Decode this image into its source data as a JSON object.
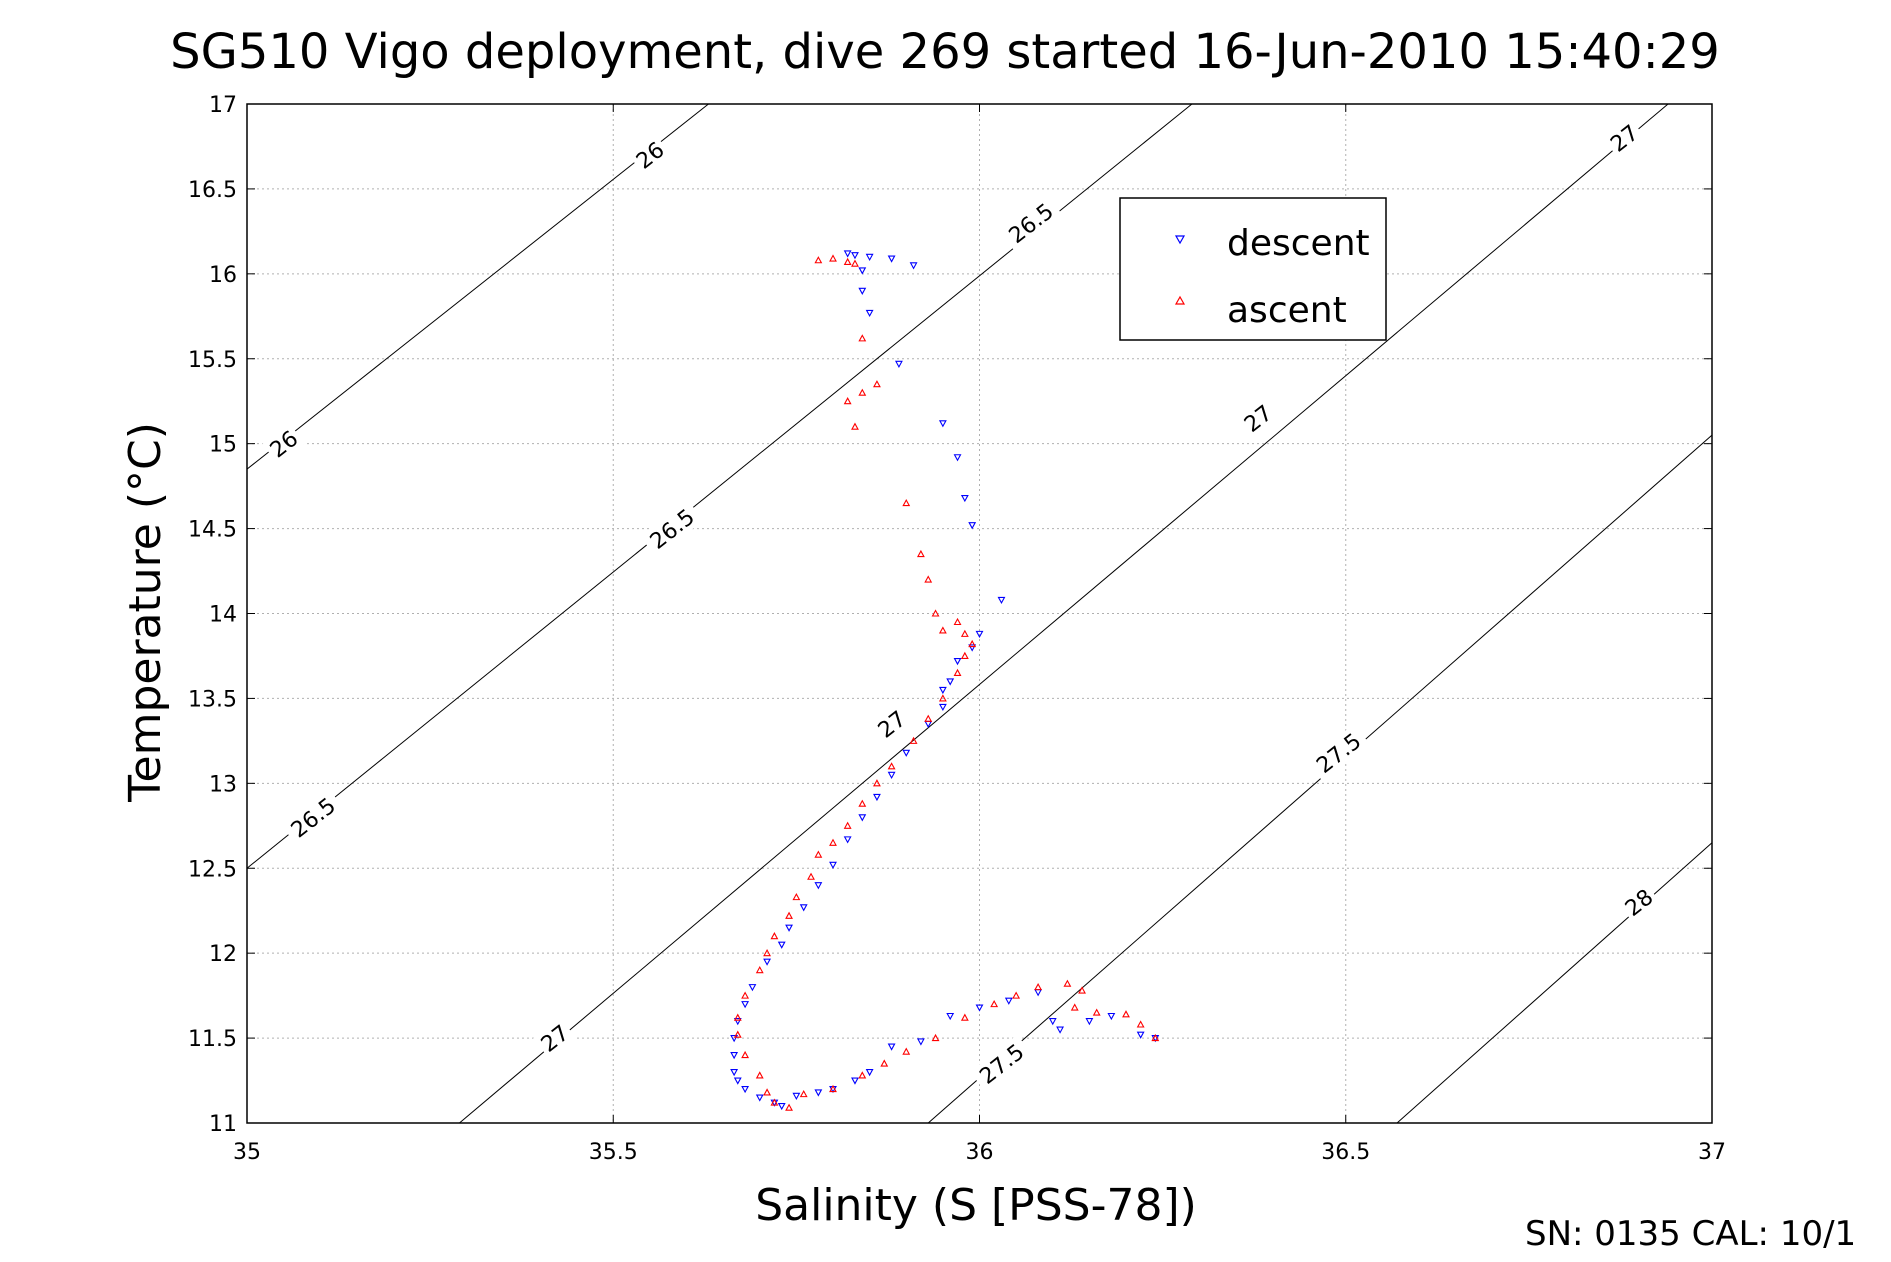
{
  "chart_data": {
    "type": "scatter",
    "title": "SG510 Vigo deployment, dive 269 started 16-Jun-2010 15:40:29",
    "xlabel": "Salinity (S [PSS-78])",
    "ylabel": "Temperature (°C)",
    "xlim": [
      35,
      37
    ],
    "ylim": [
      11,
      17
    ],
    "grid": true,
    "legend_position": "top-right",
    "x_ticks": [
      "35",
      "35.5",
      "36",
      "36.5",
      "37"
    ],
    "y_ticks": [
      "11",
      "11.5",
      "12",
      "12.5",
      "13",
      "13.5",
      "14",
      "14.5",
      "15",
      "15.5",
      "16",
      "16.5",
      "17"
    ],
    "footer_text": "SN: 0135  CAL: 10/1",
    "colors": {
      "descent": "#0000ff",
      "ascent": "#ff0000",
      "contour": "#000000",
      "grid": "#b0b0b0"
    },
    "contour_lines": [
      {
        "sigma": "26",
        "points": [
          [
            35.0,
            14.85
          ],
          [
            35.63,
            17.0
          ]
        ]
      },
      {
        "sigma": "26.5",
        "points": [
          [
            35.0,
            12.5
          ],
          [
            36.29,
            17.0
          ]
        ]
      },
      {
        "sigma": "27",
        "points": [
          [
            35.29,
            11.0
          ],
          [
            36.94,
            17.0
          ]
        ]
      },
      {
        "sigma": "27.5",
        "points": [
          [
            35.93,
            11.0
          ],
          [
            37.0,
            15.05
          ]
        ]
      },
      {
        "sigma": "28",
        "points": [
          [
            36.57,
            11.0
          ],
          [
            37.0,
            12.65
          ]
        ]
      }
    ],
    "contour_labels": [
      {
        "text": "26",
        "x": 35.55,
        "y": 16.7
      },
      {
        "text": "26",
        "x": 35.05,
        "y": 15.0
      },
      {
        "text": "26.5",
        "x": 36.07,
        "y": 16.3
      },
      {
        "text": "26.5",
        "x": 35.58,
        "y": 14.5
      },
      {
        "text": "26.5",
        "x": 35.09,
        "y": 12.8
      },
      {
        "text": "27",
        "x": 36.88,
        "y": 16.8
      },
      {
        "text": "27",
        "x": 36.38,
        "y": 15.15
      },
      {
        "text": "27",
        "x": 35.88,
        "y": 13.35
      },
      {
        "text": "27",
        "x": 35.42,
        "y": 11.5
      },
      {
        "text": "27.5",
        "x": 36.49,
        "y": 13.18
      },
      {
        "text": "27.5",
        "x": 36.03,
        "y": 11.35
      },
      {
        "text": "28",
        "x": 36.9,
        "y": 12.3
      }
    ],
    "series": [
      {
        "name": "descent",
        "marker": "triangle-down",
        "points": [
          [
            35.82,
            16.12
          ],
          [
            35.83,
            16.11
          ],
          [
            35.85,
            16.1
          ],
          [
            35.88,
            16.09
          ],
          [
            35.91,
            16.05
          ],
          [
            35.84,
            16.02
          ],
          [
            35.84,
            15.9
          ],
          [
            35.85,
            15.77
          ],
          [
            35.89,
            15.47
          ],
          [
            35.95,
            15.12
          ],
          [
            35.97,
            14.92
          ],
          [
            35.98,
            14.68
          ],
          [
            35.99,
            14.52
          ],
          [
            36.03,
            14.08
          ],
          [
            36.0,
            13.88
          ],
          [
            35.99,
            13.8
          ],
          [
            35.97,
            13.72
          ],
          [
            35.96,
            13.6
          ],
          [
            35.95,
            13.55
          ],
          [
            35.95,
            13.45
          ],
          [
            35.93,
            13.35
          ],
          [
            35.9,
            13.18
          ],
          [
            35.88,
            13.05
          ],
          [
            35.86,
            12.92
          ],
          [
            35.84,
            12.8
          ],
          [
            35.82,
            12.67
          ],
          [
            35.8,
            12.52
          ],
          [
            35.78,
            12.4
          ],
          [
            35.76,
            12.27
          ],
          [
            35.74,
            12.15
          ],
          [
            35.73,
            12.05
          ],
          [
            35.71,
            11.95
          ],
          [
            35.69,
            11.8
          ],
          [
            35.68,
            11.7
          ],
          [
            35.67,
            11.6
          ],
          [
            35.665,
            11.5
          ],
          [
            35.665,
            11.4
          ],
          [
            35.665,
            11.3
          ],
          [
            35.67,
            11.25
          ],
          [
            35.68,
            11.2
          ],
          [
            35.7,
            11.15
          ],
          [
            35.72,
            11.12
          ],
          [
            35.73,
            11.1
          ],
          [
            35.75,
            11.16
          ],
          [
            35.78,
            11.18
          ],
          [
            35.8,
            11.2
          ],
          [
            35.83,
            11.25
          ],
          [
            35.85,
            11.3
          ],
          [
            35.88,
            11.45
          ],
          [
            35.92,
            11.48
          ],
          [
            35.96,
            11.63
          ],
          [
            36.0,
            11.68
          ],
          [
            36.04,
            11.72
          ],
          [
            36.08,
            11.77
          ],
          [
            36.1,
            11.6
          ],
          [
            36.11,
            11.55
          ],
          [
            36.15,
            11.6
          ],
          [
            36.18,
            11.63
          ],
          [
            36.22,
            11.52
          ],
          [
            36.24,
            11.5
          ]
        ]
      },
      {
        "name": "ascent",
        "marker": "triangle-up",
        "points": [
          [
            35.78,
            16.08
          ],
          [
            35.8,
            16.09
          ],
          [
            35.82,
            16.07
          ],
          [
            35.83,
            16.06
          ],
          [
            35.84,
            15.62
          ],
          [
            35.84,
            15.3
          ],
          [
            35.82,
            15.25
          ],
          [
            35.86,
            15.35
          ],
          [
            35.83,
            15.1
          ],
          [
            35.9,
            14.65
          ],
          [
            35.92,
            14.35
          ],
          [
            35.93,
            14.2
          ],
          [
            35.94,
            14.0
          ],
          [
            35.95,
            13.9
          ],
          [
            35.97,
            13.95
          ],
          [
            35.98,
            13.88
          ],
          [
            35.99,
            13.82
          ],
          [
            35.98,
            13.75
          ],
          [
            35.97,
            13.65
          ],
          [
            35.95,
            13.5
          ],
          [
            35.93,
            13.38
          ],
          [
            35.91,
            13.25
          ],
          [
            35.88,
            13.1
          ],
          [
            35.86,
            13.0
          ],
          [
            35.84,
            12.88
          ],
          [
            35.82,
            12.75
          ],
          [
            35.8,
            12.65
          ],
          [
            35.78,
            12.58
          ],
          [
            35.77,
            12.45
          ],
          [
            35.75,
            12.33
          ],
          [
            35.74,
            12.22
          ],
          [
            35.72,
            12.1
          ],
          [
            35.71,
            12.0
          ],
          [
            35.7,
            11.9
          ],
          [
            35.68,
            11.75
          ],
          [
            35.67,
            11.62
          ],
          [
            35.67,
            11.52
          ],
          [
            35.68,
            11.4
          ],
          [
            35.7,
            11.28
          ],
          [
            35.71,
            11.18
          ],
          [
            35.72,
            11.12
          ],
          [
            35.74,
            11.09
          ],
          [
            35.76,
            11.17
          ],
          [
            35.8,
            11.2
          ],
          [
            35.84,
            11.28
          ],
          [
            35.87,
            11.35
          ],
          [
            35.9,
            11.42
          ],
          [
            35.94,
            11.5
          ],
          [
            35.98,
            11.62
          ],
          [
            36.02,
            11.7
          ],
          [
            36.05,
            11.75
          ],
          [
            36.08,
            11.8
          ],
          [
            36.12,
            11.82
          ],
          [
            36.14,
            11.78
          ],
          [
            36.13,
            11.68
          ],
          [
            36.16,
            11.65
          ],
          [
            36.2,
            11.64
          ],
          [
            36.22,
            11.58
          ],
          [
            36.24,
            11.5
          ]
        ]
      }
    ]
  }
}
